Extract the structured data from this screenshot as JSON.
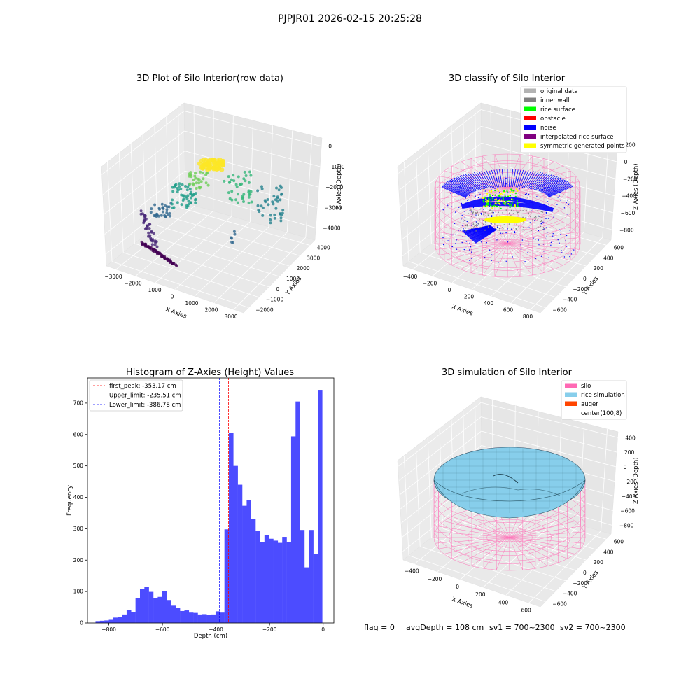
{
  "figure": {
    "suptitle": "PJPJR01 2026-02-15 20:25:28",
    "footer": {
      "flag": "flag = 0",
      "avg_depth": "avgDepth = 108 cm",
      "sv1": "sv1 = 700~2300",
      "sv2": "sv2 = 700~2300"
    }
  },
  "colors": {
    "histogram_bar": "#4c4cff",
    "first_peak_line": "#ff0000",
    "limit_line": "#0000ff",
    "silo_wire": "#ff69b4",
    "rice_surface_fill": "#87ceeb",
    "noise": "#0000ff",
    "rice_surface": "#00ff00",
    "symmetric": "#ffff00",
    "inner_wall": "#808080"
  },
  "chart_data": [
    {
      "type": "scatter",
      "projection": "3d",
      "title": "3D Plot of Silo Interior(row data)",
      "xlabel": "X Axies",
      "ylabel": "Y Axies",
      "zlabel": "Z Axies (Depth)",
      "x_ticks": [
        "−3000",
        "−2000",
        "−1000",
        "0",
        "1000",
        "2000",
        "3000"
      ],
      "y_ticks": [
        "−2000",
        "−1000",
        "0",
        "1000",
        "2000",
        "3000",
        "4000"
      ],
      "z_ticks": [
        "0",
        "−1000",
        "−2000",
        "−3000",
        "−4000"
      ],
      "colormap": "viridis",
      "grid": true
    },
    {
      "type": "scatter",
      "projection": "3d",
      "title": "3D classify of Silo Interior",
      "xlabel": "X Axies",
      "ylabel": "Y Axies",
      "zlabel": "Z Axies (Depth)",
      "x_ticks": [
        "−400",
        "−200",
        "0",
        "200",
        "400",
        "600",
        "800"
      ],
      "y_ticks": [
        "−600",
        "−400",
        "−200",
        "0",
        "200",
        "400",
        "600"
      ],
      "z_ticks": [
        "200",
        "0",
        "−200",
        "−400",
        "−600",
        "−800"
      ],
      "legend_position": "top-right",
      "legend": [
        {
          "label": "original data",
          "color": "#b3b3b3"
        },
        {
          "label": "inner wall",
          "color": "#808080"
        },
        {
          "label": "rice surface",
          "color": "#00ff00"
        },
        {
          "label": "obstacle",
          "color": "#ff0000"
        },
        {
          "label": "noise",
          "color": "#0000ff"
        },
        {
          "label": "interpolated rice surface",
          "color": "#800080"
        },
        {
          "label": "symmetric generated points",
          "color": "#ffff00"
        }
      ],
      "grid": true
    },
    {
      "type": "bar",
      "title": "Histogram of Z-Axies (Height) Values",
      "xlabel": "Depth (cm)",
      "ylabel": "Frequency",
      "xlim": [
        -880,
        40
      ],
      "ylim": [
        0,
        780
      ],
      "x_ticks": [
        -800,
        -600,
        -400,
        -200,
        0
      ],
      "x_tick_labels": [
        "−800",
        "−600",
        "−400",
        "−200",
        "0"
      ],
      "y_ticks": [
        0,
        100,
        200,
        300,
        400,
        500,
        600,
        700
      ],
      "bin_start": -850,
      "bin_width": 16.6,
      "values": [
        6,
        7,
        8,
        10,
        17,
        20,
        27,
        42,
        35,
        80,
        108,
        115,
        99,
        78,
        83,
        102,
        73,
        55,
        48,
        38,
        40,
        33,
        32,
        27,
        28,
        26,
        27,
        37,
        33,
        298,
        604,
        500,
        440,
        373,
        390,
        330,
        292,
        258,
        280,
        268,
        262,
        255,
        274,
        257,
        594,
        705,
        296,
        177,
        296,
        220,
        742
      ],
      "vlines": [
        {
          "label": "first_peak: -353.17 cm",
          "x": -353.17,
          "color": "#ff0000"
        },
        {
          "label": "Upper_limit: -235.51 cm",
          "x": -235.51,
          "color": "#0000ff"
        },
        {
          "label": "Lower_limit: -386.78 cm",
          "x": -386.78,
          "color": "#0000ff"
        }
      ],
      "legend_position": "top-left"
    },
    {
      "type": "area",
      "projection": "3d",
      "title": "3D simulation of Silo Interior",
      "xlabel": "X Axies",
      "ylabel": "Y Axies",
      "zlabel": "Z Axies (Depth)",
      "x_ticks": [
        "−400",
        "−200",
        "0",
        "200",
        "400",
        "600"
      ],
      "y_ticks": [
        "−600",
        "−400",
        "−200",
        "0",
        "200",
        "400",
        "600"
      ],
      "z_ticks": [
        "400",
        "200",
        "0",
        "−200",
        "−400",
        "−600",
        "−800"
      ],
      "legend_position": "top-right",
      "legend": [
        {
          "label": "silo",
          "color": "#ff69b4"
        },
        {
          "label": "rice simulation",
          "color": "#87ceeb"
        },
        {
          "label": "auger",
          "color": "#ff4500"
        },
        {
          "label": "center(100,8)",
          "color": "#ffffff"
        }
      ],
      "grid": true
    }
  ]
}
